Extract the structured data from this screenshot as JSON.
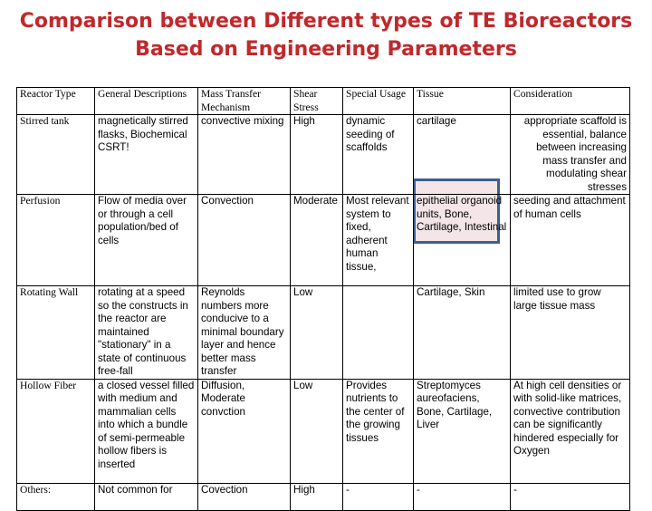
{
  "title": {
    "line1": "Comparison between Different types of TE Bioreactors",
    "line2": "Based on Engineering Parameters"
  },
  "headers": {
    "reactor_type": "Reactor Type",
    "general_descriptions": "General Descriptions",
    "mass_transfer": "Mass Transfer Mechanism",
    "shear_stress": "Shear Stress",
    "special_usage": "Special Usage",
    "tissue": "Tissue",
    "consideration": "Consideration"
  },
  "rows": [
    {
      "reactor_type": "Stirred tank",
      "general": "magnetically stirred flasks, Biochemical CSRT!",
      "mass_transfer": "convective mixing",
      "shear": "High",
      "special": "dynamic seeding of scaffolds",
      "tissue": "cartilage",
      "consideration": "appropriate scaffold is essential, balance between increasing mass transfer and modulating shear stresses"
    },
    {
      "reactor_type": "Perfusion",
      "general": "Flow of media over or through a cell population/bed of cells",
      "mass_transfer": "Convection",
      "shear": "Moderate",
      "special": "Most relevant system to fixed, adherent human tissue,",
      "tissue": "epithelial organoid units, Bone, Cartilage, Intestinal",
      "consideration": "seeding and attachment of human cells"
    },
    {
      "reactor_type": "Rotating Wall",
      "general": "rotating at a speed so the constructs in the reactor are maintained \"stationary\" in a state of continuous free-fall",
      "mass_transfer": "Reynolds numbers more conducive to a minimal boundary layer and hence better mass transfer",
      "shear": "Low",
      "special": "",
      "tissue": "Cartilage, Skin",
      "consideration": "limited use to grow large tissue mass"
    },
    {
      "reactor_type": "Hollow Fiber",
      "general": "a closed vessel filled with medium and mammalian cells into which a bundle of semi-permeable hollow fibers is inserted",
      "mass_transfer": "Diffusion, Moderate convction",
      "shear": "Low",
      "special": "Provides nutrients to the center of the growing tissues",
      "tissue": "Streptomyces aureofaciens, Bone, Cartilage, Liver",
      "consideration": "At high cell densities or with solid-like matrices, convective contribution can be significantly hindered especially for Oxygen"
    },
    {
      "reactor_type": "Others:",
      "general": "Not common for",
      "mass_transfer": "Covection",
      "shear": "High",
      "special": "-",
      "tissue": "-",
      "consideration": "-"
    }
  ]
}
